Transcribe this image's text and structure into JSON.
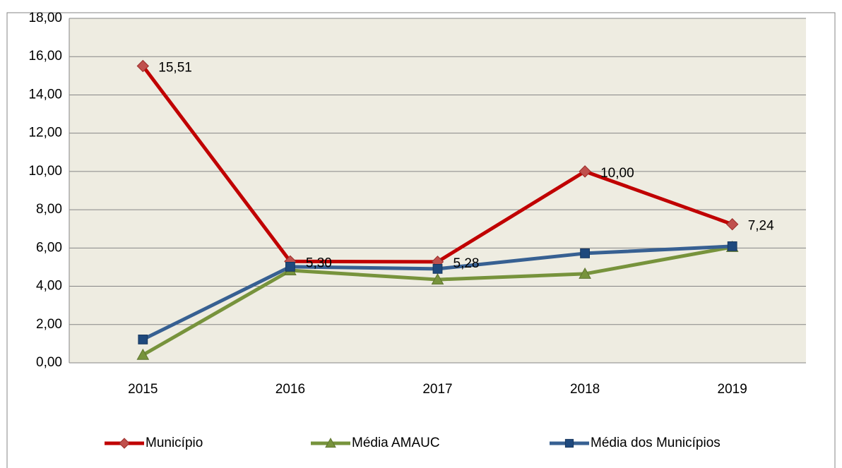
{
  "chart_data": {
    "type": "line",
    "categories": [
      "2015",
      "2016",
      "2017",
      "2018",
      "2019"
    ],
    "series": [
      {
        "name": "Município",
        "color": "#c00000",
        "marker_color": "#c0504d",
        "marker": "diamond",
        "values": [
          15.51,
          5.3,
          5.28,
          10.0,
          7.24
        ],
        "value_labels": [
          "15,51",
          "5,30",
          "5,28",
          "10,00",
          "7,24"
        ]
      },
      {
        "name": "Média AMAUC",
        "color": "#77933c",
        "marker_color": "#77933c",
        "marker": "triangle",
        "values": [
          0.41,
          4.83,
          4.35,
          4.65,
          6.05
        ]
      },
      {
        "name": "Média dos Municípios",
        "color": "#376092",
        "marker_color": "#1f497d",
        "marker": "square",
        "values": [
          1.22,
          5.02,
          4.91,
          5.72,
          6.09
        ]
      }
    ],
    "ylim": [
      0,
      18
    ],
    "yticks": [
      {
        "value": 0,
        "label": "0,00"
      },
      {
        "value": 2,
        "label": "2,00"
      },
      {
        "value": 4,
        "label": "4,00"
      },
      {
        "value": 6,
        "label": "6,00"
      },
      {
        "value": 8,
        "label": "8,00"
      },
      {
        "value": 10,
        "label": "10,00"
      },
      {
        "value": 12,
        "label": "12,00"
      },
      {
        "value": 14,
        "label": "14,00"
      },
      {
        "value": 16,
        "label": "16,00"
      },
      {
        "value": 18,
        "label": "18,00"
      }
    ],
    "grid": true,
    "legend": "bottom"
  }
}
